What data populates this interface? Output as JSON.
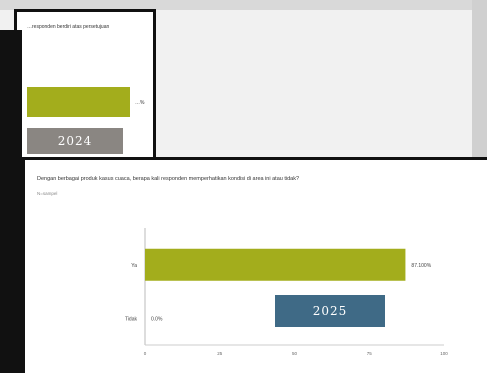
{
  "back_chart": {
    "title": "…responden berdiri atas persetujuan",
    "bar_label": "…%",
    "year": "2024",
    "bar_color": "#a3ad1c",
    "year_color": "#8a8682"
  },
  "chart_data": {
    "type": "bar",
    "orientation": "horizontal",
    "title": "Dengan berbagai produk kasus cuaca, berapa kali responden memperhatikan kondisi di area ini atau tidak?",
    "subtitle": "N=sampel",
    "year": "2025",
    "categories": [
      "Ya",
      "Tidak"
    ],
    "values": [
      87.1,
      0
    ],
    "value_labels": [
      "87.100%",
      "0.0%"
    ],
    "xlim": [
      0,
      100
    ],
    "xticks": [
      "0",
      "25",
      "50",
      "75",
      "100"
    ],
    "bar_color": "#a3ad1c",
    "year_color": "#3f6a86",
    "grid": false
  }
}
